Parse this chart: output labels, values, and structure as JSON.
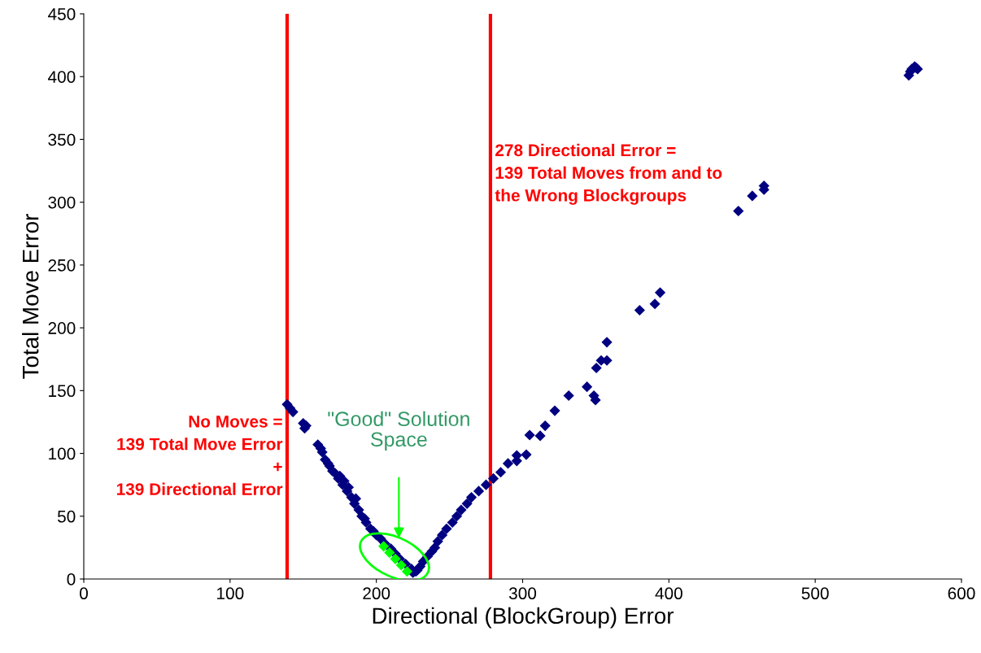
{
  "chart_data": {
    "type": "scatter",
    "xlabel": "Directional (BlockGroup) Error",
    "ylabel": "Total Move Error",
    "xlim": [
      0,
      600
    ],
    "xticks": [
      0,
      100,
      200,
      300,
      400,
      500,
      600
    ],
    "ylim": [
      0,
      450
    ],
    "yticks": [
      0,
      50,
      100,
      150,
      200,
      250,
      300,
      350,
      400,
      450
    ],
    "grid": false,
    "marker": "diamond",
    "series": [
      {
        "color": "#000080",
        "x": [
          139,
          141,
          143,
          150,
          151,
          152,
          160,
          162,
          163,
          165,
          167,
          168,
          170,
          172,
          174,
          175,
          177,
          178,
          180,
          181,
          183,
          185,
          186,
          188,
          190,
          192,
          193,
          196,
          198,
          200,
          203,
          206,
          210,
          213,
          216,
          220,
          224,
          227,
          225,
          228,
          230,
          232,
          235,
          238,
          240,
          242,
          245,
          248,
          252,
          255,
          258,
          262,
          265,
          270,
          275,
          280,
          285,
          290,
          296,
          296,
          302.5,
          304.8,
          312,
          315.4,
          322,
          331.5,
          344,
          348.7,
          349.8,
          350.4,
          353.7,
          357.6,
          357.6,
          380,
          390.4,
          394,
          447.5,
          457,
          465,
          465,
          564,
          566,
          568,
          569,
          570,
          565
        ],
        "values": [
          139,
          136,
          133,
          124,
          120,
          122,
          107,
          104,
          101,
          95,
          92,
          90,
          86,
          84,
          80,
          82,
          75,
          78,
          70,
          73,
          65,
          60,
          64,
          55,
          50,
          48,
          45,
          40,
          38,
          35,
          32,
          28,
          24,
          20,
          16,
          12,
          8,
          6,
          5,
          7,
          10,
          14,
          18,
          22,
          25,
          30,
          35,
          40,
          45,
          50,
          55,
          60,
          65,
          70,
          75,
          80,
          85,
          92,
          94,
          98.4,
          99,
          114.6,
          114,
          122,
          134,
          146,
          153,
          146,
          142.5,
          168,
          174,
          174,
          188.5,
          214,
          219,
          228,
          293,
          305,
          313,
          310,
          401,
          406,
          408,
          407,
          406,
          404
        ]
      },
      {
        "color": "#00ff00",
        "x": [
          205,
          209,
          213,
          217,
          221
        ],
        "values": [
          26,
          21,
          16,
          11,
          6
        ]
      }
    ],
    "ref_lines": [
      {
        "axis": "x",
        "value": 139,
        "label": "No Moves =\n139 Total Move Error\n+\n139 Directional Error",
        "color": "#ff0000",
        "line_style": "solid"
      },
      {
        "axis": "x",
        "value": 278,
        "label": "278 Directional Error =\n139 Total Moves from and to\nthe Wrong Blockgroups",
        "color": "#ff0000",
        "line_style": "solid"
      }
    ],
    "annotations": [
      "\"Good\" Solution\nSpace"
    ]
  }
}
